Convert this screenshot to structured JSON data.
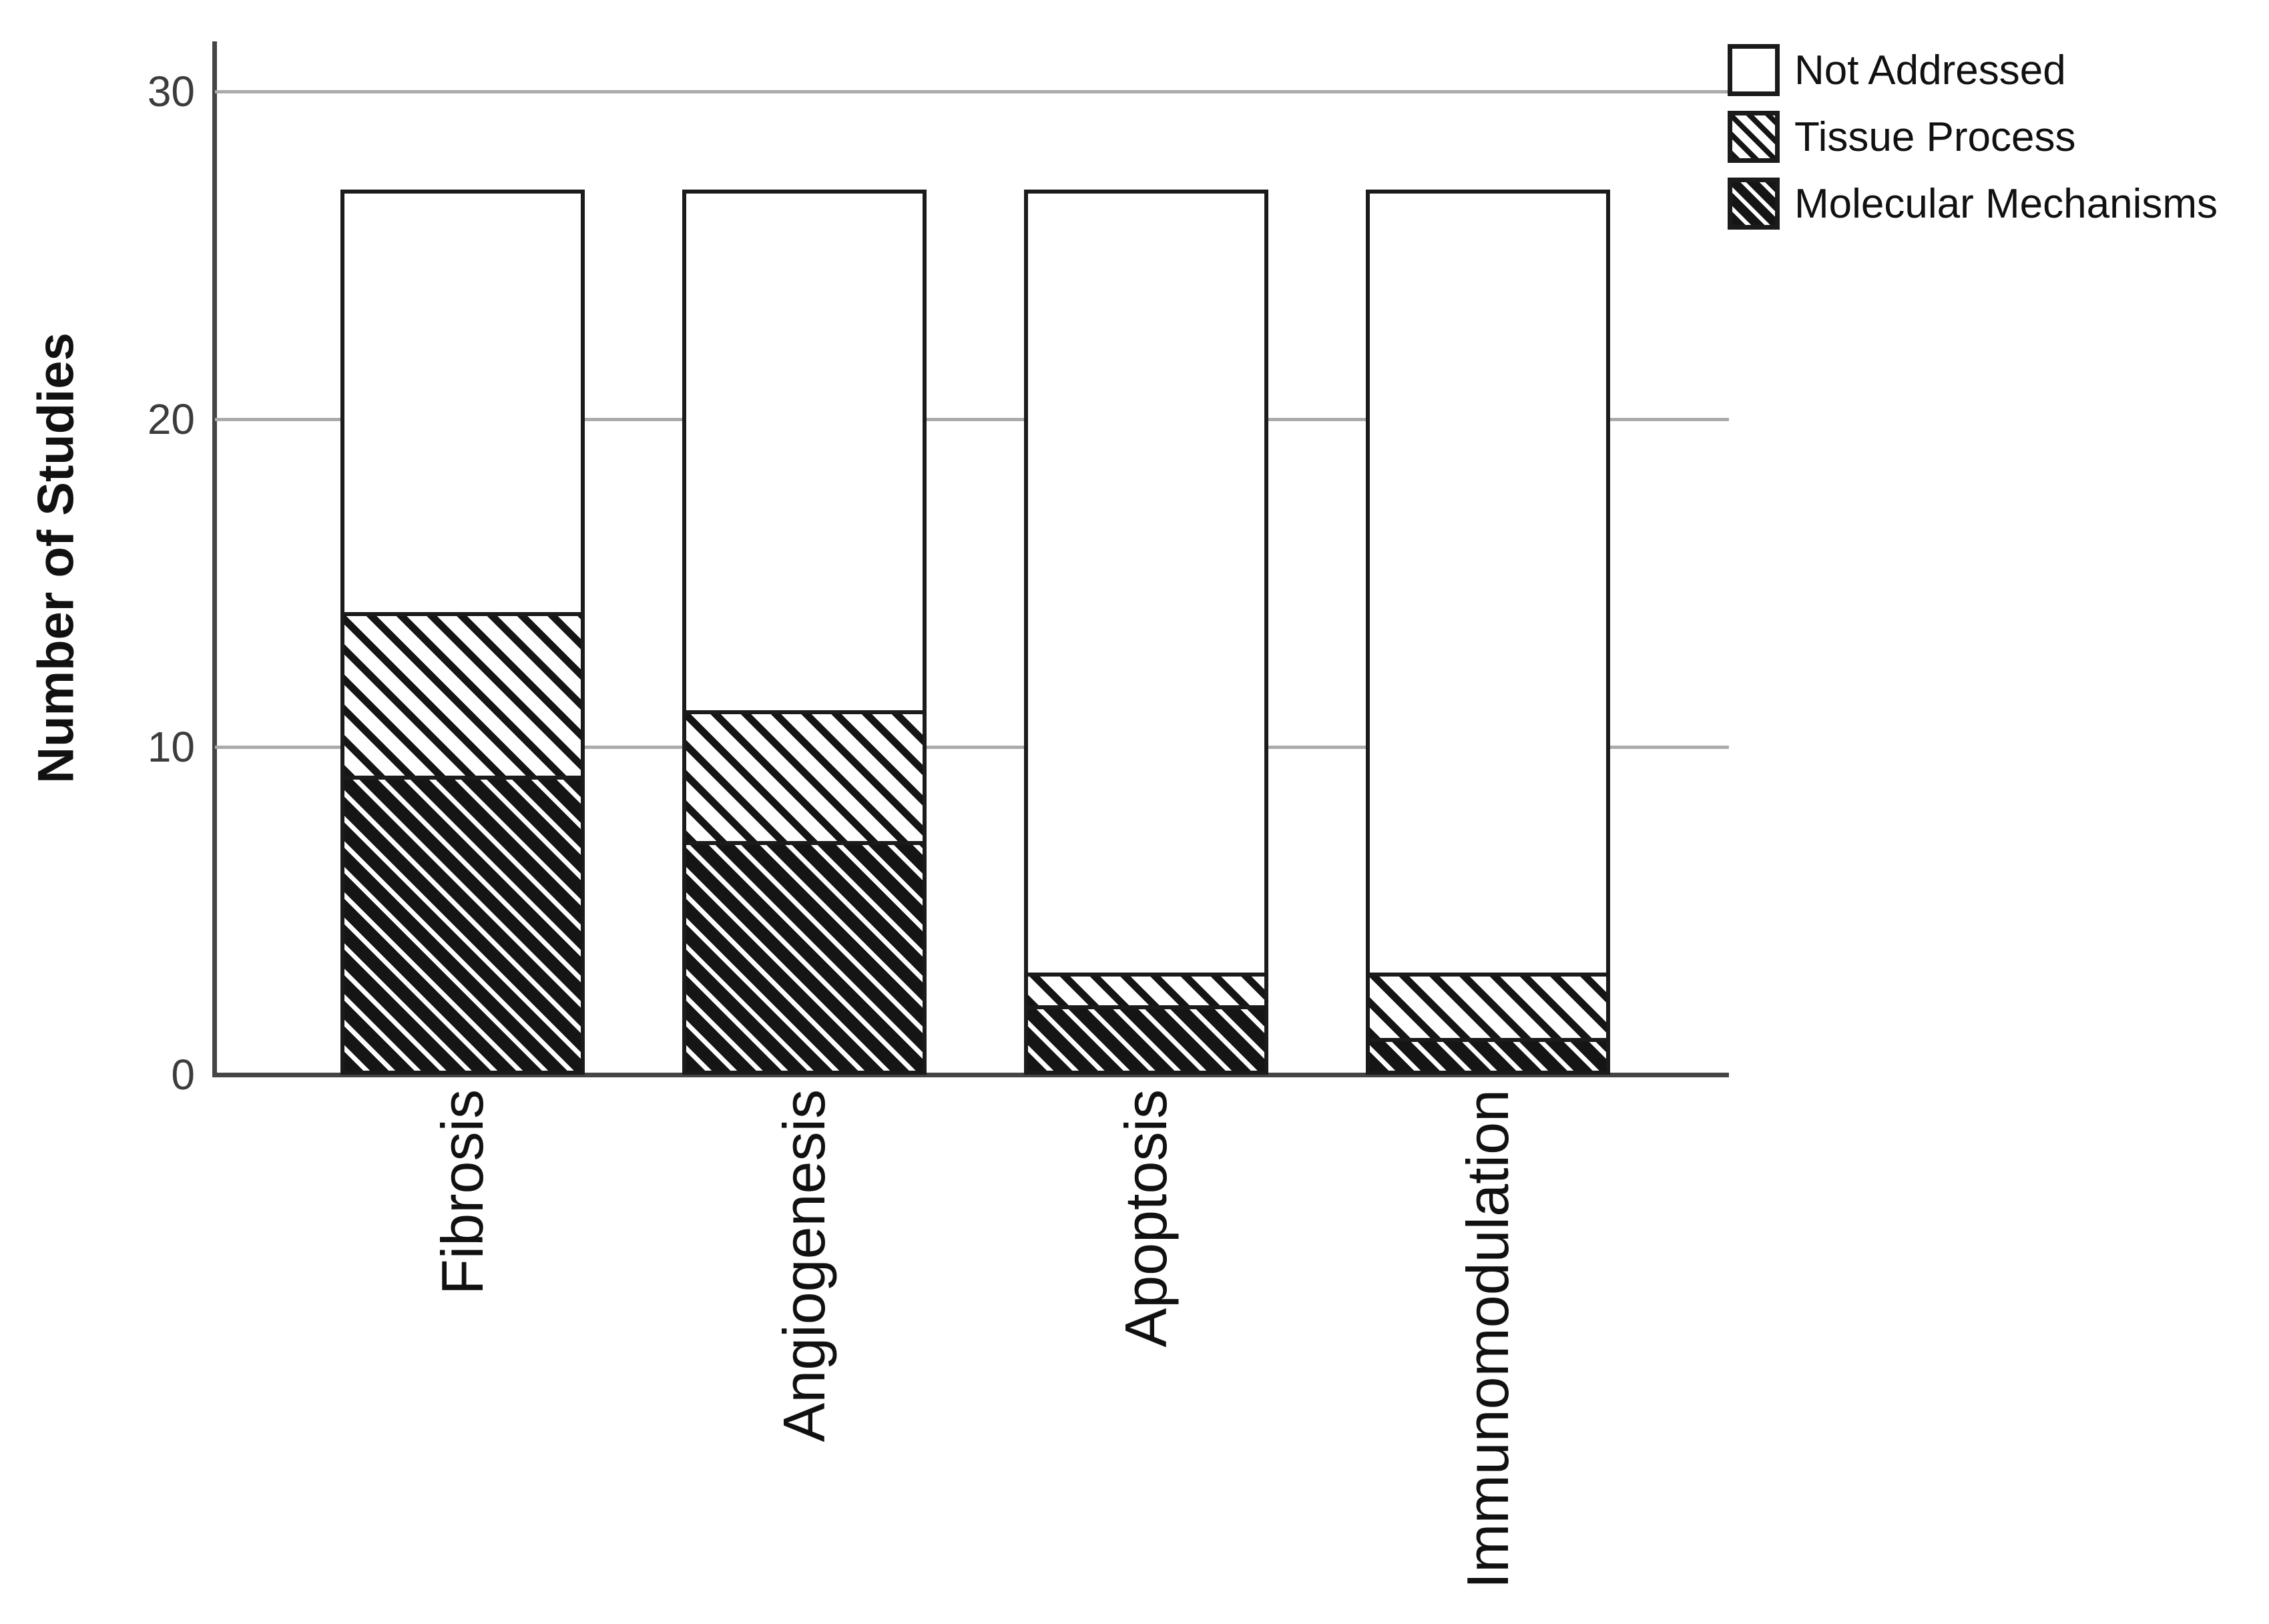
{
  "chart_data": {
    "type": "bar",
    "stacked": true,
    "categories": [
      "Fibrosis",
      "Angiogenesis",
      "Apoptosis",
      "Immunomodulation"
    ],
    "series": [
      {
        "name": "Molecular Mechanisms",
        "pattern": "dense-diagonal",
        "values": [
          9,
          7,
          2,
          1
        ]
      },
      {
        "name": "Tissue Process",
        "pattern": "light-diagonal",
        "values": [
          5,
          4,
          1,
          2
        ]
      },
      {
        "name": "Not Addressed",
        "pattern": "solid-white",
        "values": [
          13,
          16,
          24,
          24
        ]
      }
    ],
    "bar_totals": [
      27,
      27,
      27,
      27
    ],
    "xlabel": "",
    "ylabel": "Number of Studies",
    "yticks": [
      0,
      10,
      20,
      30
    ],
    "ylim": [
      0,
      32
    ],
    "grid": "horizontal",
    "legend_position": "top-right",
    "legend_order": [
      "Not Addressed",
      "Tissue Process",
      "Molecular Mechanisms"
    ]
  },
  "colors": {
    "ink": "#1b1b1b",
    "axis": "#454545",
    "gridline": "#ababab",
    "background": "#ffffff"
  }
}
